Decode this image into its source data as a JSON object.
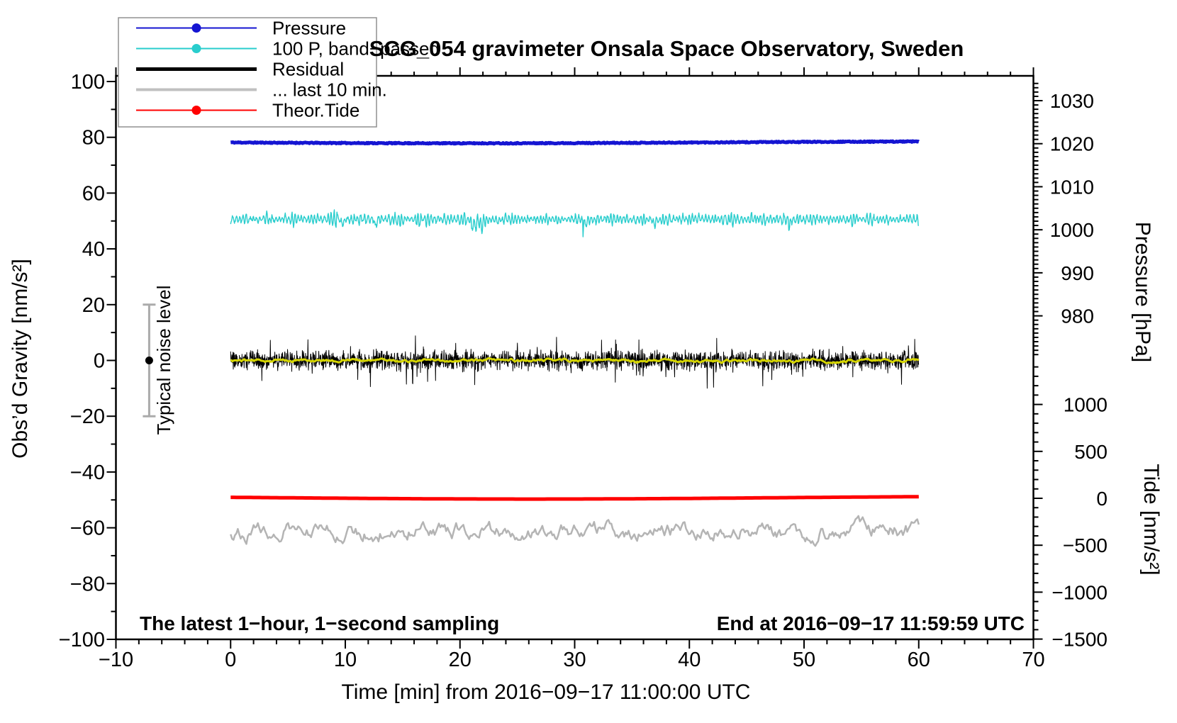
{
  "figure": {
    "background": "#FFFFFF"
  },
  "chart_data": {
    "type": "line",
    "title": "SCG_054 gravimeter Onsala Space Observatory, Sweden",
    "xlabel": "Time [min] from 2016−09−17 11:00:00 UTC",
    "x_axis": {
      "range": [
        -10,
        70
      ],
      "major_step": 10,
      "minor_step": 2,
      "tick_values": [
        -10,
        0,
        10,
        20,
        30,
        40,
        50,
        60,
        70
      ],
      "tick_labels": [
        "−10",
        "0",
        "10",
        "20",
        "30",
        "40",
        "50",
        "60",
        "70"
      ]
    },
    "y_left_axis": {
      "label": "Obs’d Gravity [nm/s²]",
      "range": [
        -100,
        100
      ],
      "major_step": 20,
      "minor_step": 10,
      "tick_values": [
        100,
        80,
        60,
        40,
        20,
        0,
        -20,
        -40,
        -60,
        -80,
        -100
      ],
      "tick_labels": [
        "100",
        "80",
        "60",
        "40",
        "20",
        "0",
        "−20",
        "−40",
        "−60",
        "−80",
        "−100"
      ]
    },
    "y_right_pressure_axis": {
      "label": "Pressure [hPa]",
      "units": "hPa",
      "major_step": 10,
      "minor_step": 1,
      "tick_values": [
        1030,
        1020,
        1010,
        1000,
        990,
        980
      ],
      "tick_labels": [
        "1030",
        "1020",
        "1010",
        "1000",
        "990",
        "980"
      ],
      "minor_range": [
        971,
        1034
      ]
    },
    "y_right_tide_axis": {
      "label": "Tide [nm/s²]",
      "units": "nm/s²",
      "major_step": 500,
      "minor_step": 100,
      "tick_values": [
        1000,
        500,
        0,
        -500,
        -1000,
        -1500
      ],
      "tick_labels": [
        "1000",
        "500",
        "0",
        "−500",
        "−1000",
        "−1500"
      ],
      "minor_range": [
        -1500,
        1400
      ]
    },
    "annotations": {
      "bottom_left": "The latest 1−hour, 1−second sampling",
      "bottom_right": "End at 2016−09−17 11:59:59 UTC",
      "noise_label": "Typical noise level"
    },
    "noise_marker": {
      "x_min": -7.1,
      "center_value": 0,
      "error": 20,
      "bar_color": "#ABABAB",
      "dot_color": "#000000"
    },
    "legend": {
      "entries": [
        {
          "label": "Pressure",
          "color": "#1515D2",
          "dot": true,
          "width": 2
        },
        {
          "label": "100 P, band−passed",
          "color": "#29CDCD",
          "dot": true,
          "width": 2
        },
        {
          "label": "Residual",
          "color": "#000000",
          "dot": false,
          "width": 5
        },
        {
          "label": "... last 10 min.",
          "color": "#C0C0C0",
          "dot": false,
          "width": 4
        },
        {
          "label": "Theor.Tide",
          "color": "#FF0000",
          "dot": true,
          "width": 2
        }
      ]
    },
    "series": [
      {
        "id": "last_10_min",
        "name": "... last 10 min.",
        "axis": "left",
        "color": "#B4B4B4",
        "width": 2.5,
        "x_start": 0,
        "x_end": 60,
        "points": 480,
        "gen": {
          "kind": "lowpass",
          "base": -61,
          "amp": 5.5,
          "alpha": 0.78,
          "seed": 66
        },
        "summary": "Low-pass filtered residual of the last 10 minutes, plotted offset at −61 nm/s², smooth oscillation ±5 nm/s²"
      },
      {
        "id": "theor_tide",
        "name": "Theor.Tide",
        "axis": "tide",
        "color": "#FF0000",
        "width": 5,
        "x_start": 0,
        "x_end": 60,
        "points": 240,
        "gen": {
          "kind": "near_constant",
          "base": 6,
          "slow_amp": 14,
          "noise_amp": 0,
          "seed": 55
        },
        "summary": "Theoretical tide, essentially flat near 0 nm/s² on the tide axis (≈ −50 on left axis)"
      },
      {
        "id": "band_passed",
        "name": "100 P, band−passed",
        "axis": "left",
        "color": "#29CDCD",
        "width": 1.4,
        "x_start": 0,
        "x_end": 60,
        "points": 1600,
        "gen": {
          "kind": "bandpass",
          "base": 50.6,
          "amp": 1.5,
          "seed": 22
        },
        "summary": "Band-passed pressure (×100), centred at ≈ +50 nm/s², high-frequency noise ±2–8 nm/s²"
      },
      {
        "id": "pressure",
        "name": "Pressure",
        "axis": "pressure",
        "color": "#1515D2",
        "width": 5,
        "x_start": 0,
        "x_end": 60,
        "points": 900,
        "gen": {
          "kind": "near_constant",
          "base": 1020.3,
          "slow_amp": 0.2,
          "noise_amp": 0.12,
          "seed": 11
        },
        "summary": "Barometric pressure ≈ 1020 hPa, nearly constant over the hour"
      },
      {
        "id": "residual",
        "name": "Residual",
        "axis": "left",
        "color": "#000000",
        "width": 1,
        "x_start": 0,
        "x_end": 60,
        "points": 2600,
        "gen": {
          "kind": "spiky",
          "base": 0,
          "amp": 2.4,
          "spike_prob": 0.05,
          "spike_mult": 2.4,
          "seed": 33
        },
        "summary": "Gravity residual centred at 0 nm/s², 1-second noise ±3–8 nm/s²"
      },
      {
        "id": "residual_smooth",
        "name": "Residual smoothed",
        "axis": "left",
        "color": "#D4D400",
        "width": 3,
        "x_start": 0,
        "x_end": 60,
        "points": 700,
        "gen": {
          "kind": "lowpass",
          "base": 0,
          "amp": 1.0,
          "alpha": 0.85,
          "seed": 44
        },
        "summary": "Smoothed residual (yellow) riding on the black residual trace, ±1 nm/s²"
      }
    ]
  }
}
